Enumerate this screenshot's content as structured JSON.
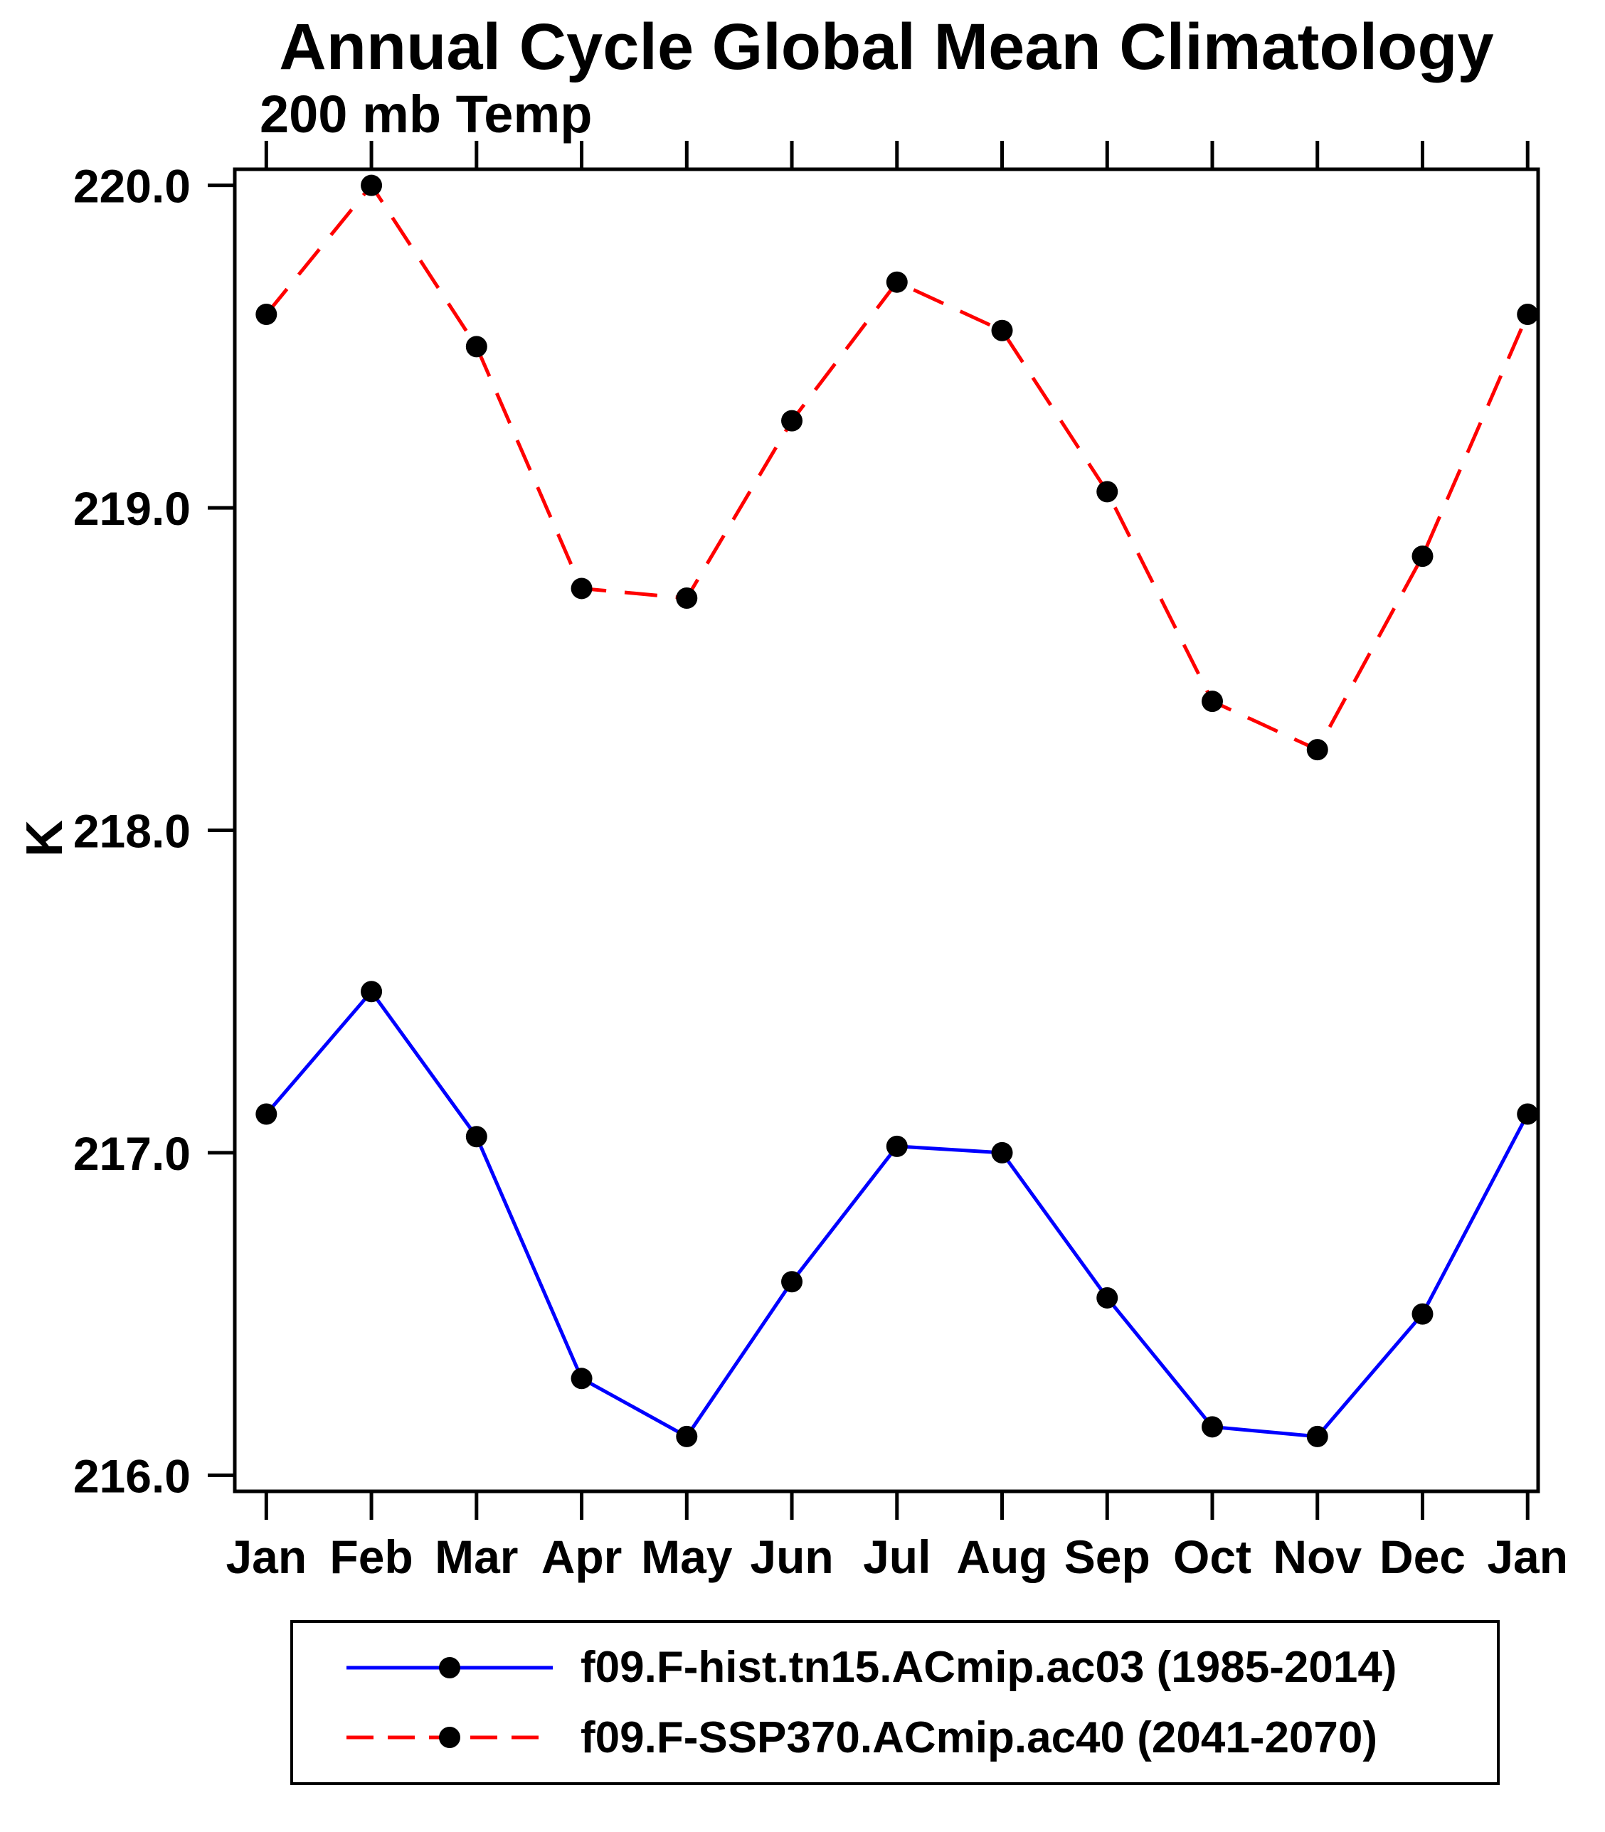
{
  "title": "Annual Cycle Global Mean Climatology",
  "subtitle": "200 mb Temp",
  "colors": {
    "background": "#ffffff",
    "axis": "#000000",
    "hist_line": "#0000ff",
    "ssp_line": "#ff0000",
    "marker": "#000000"
  },
  "chart_data": {
    "type": "line",
    "title": "Annual Cycle Global Mean Climatology",
    "subtitle": "200 mb Temp",
    "xlabel": "",
    "ylabel": "K",
    "categories": [
      "Jan",
      "Feb",
      "Mar",
      "Apr",
      "May",
      "Jun",
      "Jul",
      "Aug",
      "Sep",
      "Oct",
      "Nov",
      "Dec",
      "Jan"
    ],
    "xlim": [
      -0.3,
      12.1
    ],
    "ylim": [
      215.95,
      220.05
    ],
    "yticks": [
      216.0,
      217.0,
      218.0,
      219.0,
      220.0
    ],
    "grid": false,
    "legend_position": "bottom",
    "series": [
      {
        "name": "f09.F-hist.tn15.ACmip.ac03 (1985-2014)",
        "color": "#0000ff",
        "style": "solid",
        "marker": "#000000",
        "values": [
          217.12,
          217.5,
          217.05,
          216.3,
          216.12,
          216.6,
          217.02,
          217.0,
          216.55,
          216.15,
          216.12,
          216.5,
          217.12
        ]
      },
      {
        "name": "f09.F-SSP370.ACmip.ac40 (2041-2070)",
        "color": "#ff0000",
        "style": "dashed",
        "marker": "#000000",
        "values": [
          219.6,
          220.0,
          219.5,
          218.75,
          218.72,
          219.27,
          219.7,
          219.55,
          219.05,
          218.4,
          218.25,
          218.85,
          219.6
        ]
      }
    ]
  }
}
